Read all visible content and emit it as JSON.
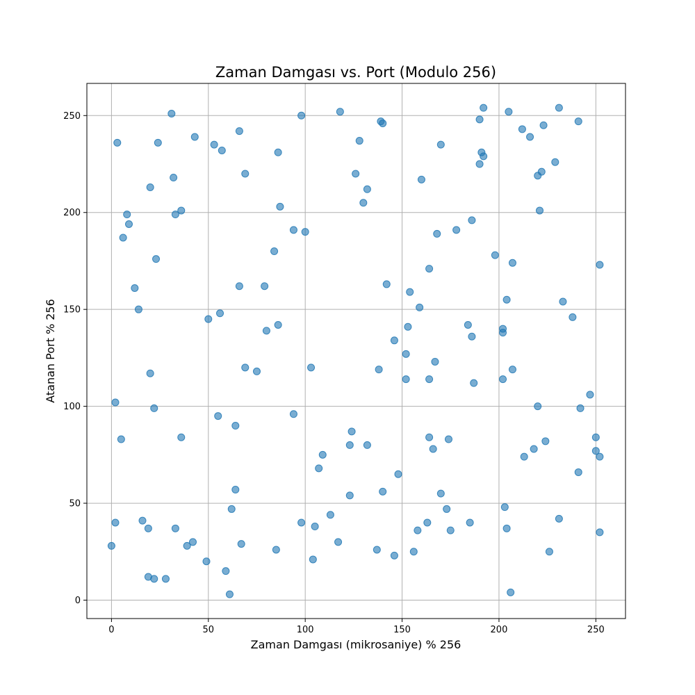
{
  "chart_data": {
    "type": "scatter",
    "title": "Zaman Damgası vs. Port (Modulo 256)",
    "xlabel": "Zaman Damgası (mikrosaniye) % 256",
    "ylabel": "Atanan Port % 256",
    "xlim": [
      -12.7,
      265.3
    ],
    "ylim": [
      -9.5,
      266.6
    ],
    "xticks": [
      0,
      50,
      100,
      150,
      200,
      250
    ],
    "yticks": [
      0,
      50,
      100,
      150,
      200,
      250
    ],
    "xtick_labels": [
      "0",
      "50",
      "100",
      "150",
      "200",
      "250"
    ],
    "ytick_labels": [
      "0",
      "50",
      "100",
      "150",
      "200",
      "250"
    ],
    "grid": true,
    "marker_color": "#1f77b4",
    "marker_alpha": 0.6,
    "points": [
      [
        0,
        28
      ],
      [
        2,
        102
      ],
      [
        2,
        40
      ],
      [
        3,
        236
      ],
      [
        5,
        83
      ],
      [
        6,
        187
      ],
      [
        8,
        199
      ],
      [
        9,
        194
      ],
      [
        12,
        161
      ],
      [
        14,
        150
      ],
      [
        16,
        41
      ],
      [
        19,
        12
      ],
      [
        19,
        37
      ],
      [
        20,
        213
      ],
      [
        20,
        117
      ],
      [
        22,
        11
      ],
      [
        22,
        99
      ],
      [
        23,
        176
      ],
      [
        24,
        236
      ],
      [
        28,
        11
      ],
      [
        31,
        251
      ],
      [
        32,
        218
      ],
      [
        33,
        199
      ],
      [
        33,
        37
      ],
      [
        36,
        201
      ],
      [
        36,
        84
      ],
      [
        39,
        28
      ],
      [
        42,
        30
      ],
      [
        43,
        239
      ],
      [
        49,
        20
      ],
      [
        50,
        145
      ],
      [
        53,
        235
      ],
      [
        55,
        95
      ],
      [
        56,
        148
      ],
      [
        57,
        232
      ],
      [
        59,
        15
      ],
      [
        61,
        3
      ],
      [
        62,
        47
      ],
      [
        64,
        90
      ],
      [
        64,
        57
      ],
      [
        66,
        242
      ],
      [
        66,
        162
      ],
      [
        67,
        29
      ],
      [
        69,
        220
      ],
      [
        69,
        120
      ],
      [
        75,
        118
      ],
      [
        79,
        162
      ],
      [
        80,
        139
      ],
      [
        84,
        180
      ],
      [
        85,
        26
      ],
      [
        86,
        231
      ],
      [
        86,
        142
      ],
      [
        87,
        203
      ],
      [
        94,
        191
      ],
      [
        94,
        96
      ],
      [
        98,
        250
      ],
      [
        98,
        40
      ],
      [
        100,
        190
      ],
      [
        103,
        120
      ],
      [
        104,
        21
      ],
      [
        105,
        38
      ],
      [
        107,
        68
      ],
      [
        109,
        75
      ],
      [
        113,
        44
      ],
      [
        117,
        30
      ],
      [
        118,
        252
      ],
      [
        123,
        80
      ],
      [
        123,
        54
      ],
      [
        124,
        87
      ],
      [
        126,
        220
      ],
      [
        128,
        237
      ],
      [
        130,
        205
      ],
      [
        132,
        212
      ],
      [
        132,
        80
      ],
      [
        137,
        26
      ],
      [
        138,
        119
      ],
      [
        139,
        247
      ],
      [
        140,
        246
      ],
      [
        140,
        56
      ],
      [
        142,
        163
      ],
      [
        146,
        134
      ],
      [
        146,
        23
      ],
      [
        148,
        65
      ],
      [
        152,
        127
      ],
      [
        152,
        114
      ],
      [
        153,
        141
      ],
      [
        154,
        159
      ],
      [
        156,
        25
      ],
      [
        158,
        36
      ],
      [
        159,
        151
      ],
      [
        160,
        217
      ],
      [
        163,
        40
      ],
      [
        164,
        171
      ],
      [
        164,
        114
      ],
      [
        164,
        84
      ],
      [
        166,
        78
      ],
      [
        167,
        123
      ],
      [
        168,
        189
      ],
      [
        170,
        235
      ],
      [
        170,
        55
      ],
      [
        173,
        47
      ],
      [
        174,
        83
      ],
      [
        175,
        36
      ],
      [
        178,
        191
      ],
      [
        184,
        142
      ],
      [
        185,
        40
      ],
      [
        186,
        196
      ],
      [
        186,
        136
      ],
      [
        187,
        112
      ],
      [
        190,
        248
      ],
      [
        190,
        225
      ],
      [
        191,
        231
      ],
      [
        192,
        254
      ],
      [
        192,
        229
      ],
      [
        198,
        178
      ],
      [
        202,
        140
      ],
      [
        202,
        138
      ],
      [
        202,
        114
      ],
      [
        203,
        48
      ],
      [
        204,
        155
      ],
      [
        204,
        37
      ],
      [
        205,
        252
      ],
      [
        206,
        4
      ],
      [
        207,
        174
      ],
      [
        207,
        119
      ],
      [
        212,
        243
      ],
      [
        213,
        74
      ],
      [
        216,
        239
      ],
      [
        218,
        78
      ],
      [
        220,
        219
      ],
      [
        220,
        100
      ],
      [
        221,
        201
      ],
      [
        222,
        221
      ],
      [
        223,
        245
      ],
      [
        224,
        82
      ],
      [
        226,
        25
      ],
      [
        229,
        226
      ],
      [
        231,
        254
      ],
      [
        231,
        42
      ],
      [
        233,
        154
      ],
      [
        238,
        146
      ],
      [
        241,
        247
      ],
      [
        241,
        66
      ],
      [
        242,
        99
      ],
      [
        247,
        106
      ],
      [
        250,
        84
      ],
      [
        250,
        77
      ],
      [
        252,
        173
      ],
      [
        252,
        74
      ],
      [
        252,
        35
      ]
    ]
  }
}
